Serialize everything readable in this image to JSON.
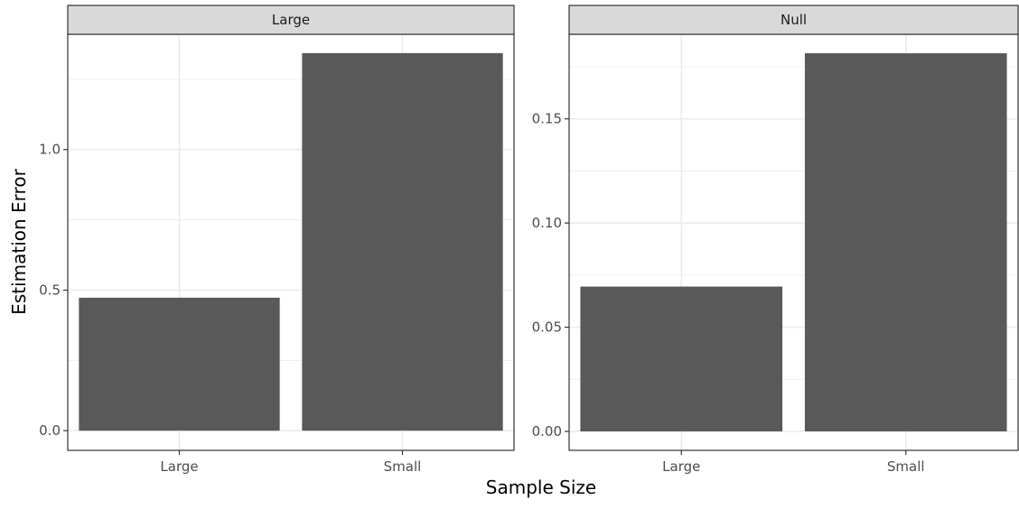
{
  "chart_data": {
    "type": "bar",
    "xlabel": "Sample Size",
    "ylabel": "Estimation Error",
    "grid": true,
    "facets": [
      {
        "strip_label": "Large",
        "categories": [
          "Large",
          "Small"
        ],
        "values": [
          0.473,
          1.343
        ],
        "ylim": [
          -0.07,
          1.41
        ],
        "yticks": [
          0.0,
          0.5,
          1.0
        ],
        "ytick_labels": [
          "0.0",
          "0.5",
          "1.0"
        ]
      },
      {
        "strip_label": "Null",
        "categories": [
          "Large",
          "Small"
        ],
        "values": [
          0.0695,
          0.1815
        ],
        "ylim": [
          -0.0091,
          0.1906
        ],
        "yticks": [
          0.0,
          0.05,
          0.1,
          0.15
        ],
        "ytick_labels": [
          "0.00",
          "0.05",
          "0.10",
          "0.15"
        ]
      }
    ],
    "colors": {
      "bar": "#595959",
      "grid": "#ebebeb",
      "panel_border": "#333333",
      "strip_fill": "#d9d9d9"
    }
  }
}
